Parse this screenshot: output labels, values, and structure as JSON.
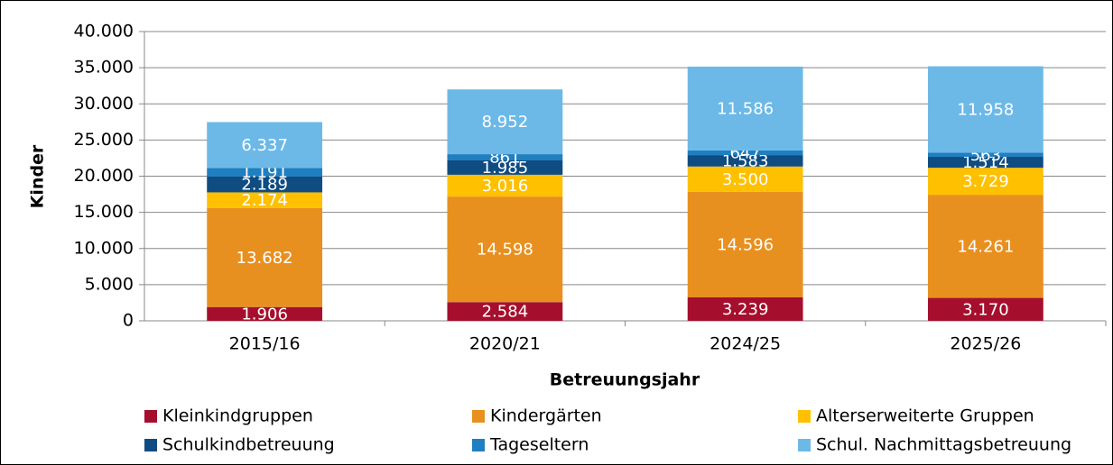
{
  "chart_data": {
    "type": "bar",
    "stacked": true,
    "y_label": "Kinder",
    "x_label": "Betreuungsjahr",
    "categories": [
      "2015/16",
      "2020/21",
      "2024/25",
      "2025/26"
    ],
    "series": [
      {
        "name": "Kleinkindgruppen",
        "color": "#a50f2d",
        "values": [
          1906,
          2584,
          3239,
          3170
        ],
        "value_labels": [
          "1.906",
          "2.584",
          "3.239",
          "3.170"
        ]
      },
      {
        "name": "Kindergärten",
        "color": "#e8901f",
        "values": [
          13682,
          14598,
          14596,
          14261
        ],
        "value_labels": [
          "13.682",
          "14.598",
          "14.596",
          "14.261"
        ]
      },
      {
        "name": "Alterserweiterte Gruppen",
        "color": "#ffc000",
        "values": [
          2174,
          3016,
          3500,
          3729
        ],
        "value_labels": [
          "2.174",
          "3.016",
          "3.500",
          "3.729"
        ]
      },
      {
        "name": "Schulkindbetreuung",
        "color": "#0f4c81",
        "values": [
          2189,
          1985,
          1583,
          1514
        ],
        "value_labels": [
          "2.189",
          "1.985",
          "1.583",
          "1.514"
        ]
      },
      {
        "name": "Tageseltern",
        "color": "#1f7fc0",
        "values": [
          1191,
          861,
          647,
          563
        ],
        "value_labels": [
          "1.191",
          "861",
          "647",
          "563"
        ]
      },
      {
        "name": "Schul. Nachmittagsbetreuung",
        "color": "#6cb9e8",
        "values": [
          6337,
          8952,
          11586,
          11958
        ],
        "value_labels": [
          "6.337",
          "8.952",
          "11.586",
          "11.958"
        ]
      }
    ],
    "ylim": [
      0,
      40000
    ],
    "yticks": [
      0,
      {
        "value": 5000,
        "label": "5.000"
      },
      {
        "value": 10000,
        "label": "10.000"
      },
      {
        "value": 15000,
        "label": "15.000"
      },
      {
        "value": 20000,
        "label": "20.000"
      },
      {
        "value": 25000,
        "label": "25.000"
      },
      {
        "value": 30000,
        "label": "30.000"
      },
      {
        "value": 35000,
        "label": "35.000"
      },
      {
        "value": 40000,
        "label": "40.000"
      }
    ],
    "grid": true,
    "legend": "bottom"
  }
}
